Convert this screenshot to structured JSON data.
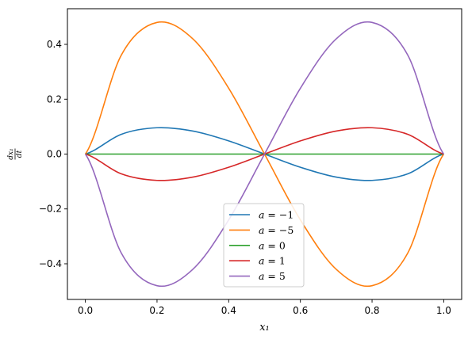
{
  "chart_data": {
    "type": "line",
    "xlabel": "x₁",
    "ylabel_num": "dx₁",
    "ylabel_den": "dt",
    "xlim": [
      -0.05,
      1.05
    ],
    "ylim": [
      -0.53,
      0.53
    ],
    "x_ticks": [
      0.0,
      0.2,
      0.4,
      0.6,
      0.8,
      1.0
    ],
    "x_tick_labels": [
      "0.0",
      "0.2",
      "0.4",
      "0.6",
      "0.8",
      "1.0"
    ],
    "y_ticks": [
      -0.4,
      -0.2,
      0.0,
      0.2,
      0.4
    ],
    "y_tick_labels": [
      "−0.4",
      "−0.2",
      "0.0",
      "0.2",
      "0.4"
    ],
    "grid": false,
    "legend_position": "lower-center",
    "series": [
      {
        "name": "a = −1",
        "a": -1,
        "color": "#1f77b4",
        "x": [
          0.0,
          0.1,
          0.2,
          0.3,
          0.4,
          0.5,
          0.6,
          0.7,
          0.8,
          0.9,
          1.0
        ],
        "y": [
          0.0,
          0.072,
          0.096,
          0.084,
          0.048,
          0.0,
          -0.048,
          -0.084,
          -0.096,
          -0.072,
          0.0
        ]
      },
      {
        "name": "a = −5",
        "a": -5,
        "color": "#ff7f0e",
        "x": [
          0.0,
          0.1,
          0.2,
          0.3,
          0.4,
          0.5,
          0.6,
          0.7,
          0.8,
          0.9,
          1.0
        ],
        "y": [
          0.0,
          0.36,
          0.48,
          0.42,
          0.24,
          0.0,
          -0.24,
          -0.42,
          -0.48,
          -0.36,
          0.0
        ]
      },
      {
        "name": "a = 0",
        "a": 0,
        "color": "#2ca02c",
        "x": [
          0.0,
          0.1,
          0.2,
          0.3,
          0.4,
          0.5,
          0.6,
          0.7,
          0.8,
          0.9,
          1.0
        ],
        "y": [
          0.0,
          0.0,
          0.0,
          0.0,
          0.0,
          0.0,
          0.0,
          0.0,
          0.0,
          0.0,
          0.0
        ]
      },
      {
        "name": "a = 1",
        "a": 1,
        "color": "#d62728",
        "x": [
          0.0,
          0.1,
          0.2,
          0.3,
          0.4,
          0.5,
          0.6,
          0.7,
          0.8,
          0.9,
          1.0
        ],
        "y": [
          0.0,
          -0.072,
          -0.096,
          -0.084,
          -0.048,
          0.0,
          0.048,
          0.084,
          0.096,
          0.072,
          0.0
        ]
      },
      {
        "name": "a = 5",
        "a": 5,
        "color": "#9467bd",
        "x": [
          0.0,
          0.1,
          0.2,
          0.3,
          0.4,
          0.5,
          0.6,
          0.7,
          0.8,
          0.9,
          1.0
        ],
        "y": [
          0.0,
          -0.36,
          -0.48,
          -0.42,
          -0.24,
          0.0,
          0.24,
          0.42,
          0.48,
          0.36,
          0.0
        ]
      }
    ]
  }
}
